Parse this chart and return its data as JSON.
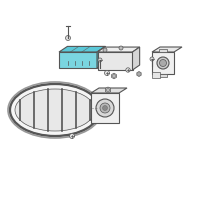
{
  "bg_color": "#ffffff",
  "highlight_color": "#5bc8d8",
  "outline_color": "#555555",
  "line_width": 0.8,
  "thin_line": 0.5,
  "fig_size": [
    2.0,
    2.0
  ],
  "dpi": 100
}
